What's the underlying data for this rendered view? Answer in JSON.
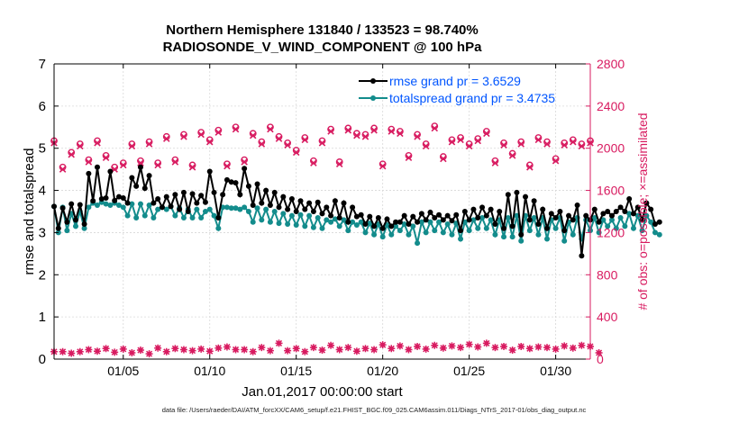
{
  "title": "Northern Hemisphere 131840 / 133523 = 98.740%",
  "subtitle": "RADIOSONDE_V_WIND_COMPONENT @ 100 hPa",
  "footer": "data file: /Users/raeder/DAI/ATM_forcXX/CAM6_setup/f.e21.FHIST_BGC.f09_025.CAM6assim.011/Diags_NTrS_2017-01/obs_diag_output.nc",
  "chart_data": {
    "type": "line",
    "title": "Northern Hemisphere 131840 / 133523 = 98.740%",
    "subtitle": "RADIOSONDE_V_WIND_COMPONENT @ 100 hPa",
    "xlabel": "Jan.01,2017 00:00:00 start",
    "ylabel": "rmse and totalspread",
    "y2label": "# of obs: o=possible; ×=assimilated",
    "xlim": [
      1,
      32
    ],
    "ylim": [
      0,
      7
    ],
    "y2lim": [
      0,
      2800
    ],
    "xticks": [
      5,
      10,
      15,
      20,
      25,
      30
    ],
    "xticklabels": [
      "01/05",
      "01/10",
      "01/15",
      "01/20",
      "01/25",
      "01/30"
    ],
    "yticks": [
      0,
      1,
      2,
      3,
      4,
      5,
      6,
      7
    ],
    "y2ticks": [
      0,
      400,
      800,
      1200,
      1600,
      2000,
      2400,
      2800
    ],
    "grid": true,
    "legend_position": "top-right",
    "colors": {
      "rmse": "#000000",
      "spread": "#138c8c",
      "obs": "#d81b60",
      "axis_right": "#d81b60",
      "legend_text": "#0055ff"
    },
    "series": [
      {
        "name": "rmse grand pr = 3.6529",
        "key": "rmse",
        "x_start": 1.0,
        "x_step": 0.25,
        "values": [
          3.62,
          3.1,
          3.58,
          3.25,
          3.68,
          3.3,
          3.66,
          3.2,
          4.4,
          3.75,
          4.55,
          3.8,
          3.82,
          4.45,
          3.76,
          3.85,
          3.82,
          3.7,
          4.3,
          4.1,
          4.55,
          4.05,
          4.35,
          3.7,
          3.8,
          3.6,
          3.85,
          3.62,
          3.9,
          3.55,
          3.95,
          3.5,
          3.92,
          3.7,
          3.88,
          3.72,
          4.45,
          3.95,
          3.35,
          3.9,
          4.25,
          4.2,
          4.18,
          3.9,
          4.52,
          4.1,
          3.65,
          4.15,
          3.7,
          4.0,
          3.65,
          3.95,
          3.6,
          3.85,
          3.55,
          3.8,
          3.5,
          3.75,
          3.55,
          3.7,
          3.5,
          3.72,
          3.45,
          3.6,
          3.4,
          3.75,
          3.35,
          3.7,
          3.25,
          3.6,
          3.38,
          3.42,
          3.2,
          3.38,
          3.15,
          3.35,
          3.1,
          3.32,
          3.15,
          3.25,
          3.25,
          3.4,
          3.2,
          3.38,
          3.25,
          3.45,
          3.3,
          3.48,
          3.35,
          3.42,
          3.3,
          3.4,
          3.28,
          3.42,
          3.05,
          3.5,
          3.3,
          3.55,
          3.35,
          3.6,
          3.4,
          3.55,
          3.2,
          3.5,
          3.1,
          3.9,
          3.15,
          3.95,
          2.95,
          3.85,
          3.3,
          3.75,
          3.2,
          3.55,
          3.1,
          3.45,
          3.35,
          3.5,
          3.05,
          3.4,
          3.3,
          3.65,
          2.45,
          3.4,
          3.3,
          3.55,
          3.25,
          3.45,
          3.5,
          3.4,
          3.5,
          3.6,
          3.5,
          3.8,
          3.45,
          3.6,
          3.3,
          3.7,
          3.55,
          3.2,
          3.25
        ]
      },
      {
        "name": "totalspread grand pr = 3.4735",
        "key": "spread",
        "x_start": 1.0,
        "x_step": 0.25,
        "values": [
          3.62,
          3.0,
          3.6,
          3.05,
          3.45,
          3.15,
          3.5,
          3.1,
          3.6,
          3.7,
          3.65,
          3.72,
          3.68,
          3.65,
          3.7,
          3.65,
          3.6,
          3.4,
          3.68,
          3.35,
          3.68,
          3.4,
          3.65,
          3.35,
          3.55,
          3.6,
          3.55,
          3.62,
          3.4,
          3.58,
          3.35,
          3.55,
          3.35,
          3.55,
          3.35,
          3.5,
          3.55,
          3.4,
          3.1,
          3.6,
          3.6,
          3.58,
          3.58,
          3.55,
          3.6,
          3.5,
          3.25,
          3.58,
          3.3,
          3.55,
          3.25,
          3.5,
          3.22,
          3.45,
          3.2,
          3.4,
          3.18,
          3.42,
          3.15,
          3.4,
          3.12,
          3.35,
          3.1,
          3.3,
          3.25,
          3.32,
          3.15,
          3.3,
          3.05,
          3.25,
          3.18,
          3.25,
          3.0,
          3.22,
          2.95,
          3.2,
          2.9,
          3.18,
          2.95,
          3.15,
          3.05,
          3.2,
          2.95,
          3.15,
          2.75,
          3.25,
          3.0,
          3.25,
          3.05,
          3.25,
          3.0,
          3.2,
          2.95,
          3.22,
          2.85,
          3.25,
          3.05,
          3.3,
          3.1,
          3.35,
          3.1,
          3.3,
          2.95,
          3.3,
          2.9,
          3.35,
          2.9,
          3.4,
          2.8,
          3.4,
          3.05,
          3.35,
          2.95,
          3.35,
          2.85,
          3.3,
          3.1,
          3.35,
          2.8,
          3.25,
          2.95,
          3.35,
          2.85,
          3.3,
          3.05,
          3.35,
          3.0,
          3.3,
          3.15,
          3.3,
          3.1,
          3.35,
          3.15,
          3.45,
          3.1,
          3.4,
          3.05,
          3.4,
          3.25,
          3.0,
          2.95
        ]
      },
      {
        "name": "obs possible",
        "key": "obs_possible",
        "marker": "o",
        "x_start": 1.0,
        "x_step": 0.5,
        "values": [
          2070,
          1820,
          1960,
          2040,
          1890,
          2070,
          1930,
          1820,
          1860,
          2040,
          1880,
          2060,
          1860,
          2110,
          1890,
          2130,
          1840,
          2150,
          2080,
          2170,
          1850,
          2200,
          1890,
          2140,
          2060,
          2200,
          2110,
          2050,
          1980,
          2100,
          1880,
          2070,
          2180,
          1870,
          2190,
          2140,
          2130,
          2190,
          1850,
          2180,
          2160,
          1930,
          2130,
          2040,
          2210,
          1920,
          2080,
          2100,
          2040,
          2090,
          2160,
          1880,
          2050,
          1950,
          2060,
          1840,
          2100,
          2060,
          1900,
          2050,
          2080,
          2040,
          2070
        ]
      },
      {
        "name": "obs assimilated",
        "key": "obs_assimilated",
        "marker": "x",
        "x_start": 1.0,
        "x_step": 0.5,
        "values": [
          2050,
          1800,
          1940,
          2020,
          1870,
          2050,
          1910,
          1800,
          1840,
          2020,
          1860,
          2040,
          1840,
          2090,
          1870,
          2110,
          1820,
          2130,
          2060,
          2150,
          1830,
          2180,
          1870,
          2120,
          2040,
          2180,
          2090,
          2030,
          1960,
          2080,
          1860,
          2050,
          2160,
          1850,
          2170,
          2120,
          2110,
          2170,
          1830,
          2160,
          2140,
          1910,
          2110,
          2020,
          2190,
          1900,
          2060,
          2080,
          2020,
          2070,
          2140,
          1860,
          2030,
          1930,
          2040,
          1820,
          2080,
          2040,
          1880,
          2030,
          2060,
          2020,
          2050
        ]
      },
      {
        "name": "obs low-level possible",
        "key": "obs_low",
        "marker": "o+x",
        "x_start": 1.0,
        "x_step": 0.5,
        "values": [
          70,
          70,
          55,
          70,
          90,
          75,
          100,
          65,
          95,
          60,
          85,
          50,
          105,
          70,
          100,
          90,
          80,
          95,
          75,
          105,
          115,
          90,
          90,
          70,
          110,
          80,
          150,
          80,
          100,
          70,
          110,
          85,
          130,
          90,
          110,
          75,
          100,
          90,
          135,
          100,
          125,
          90,
          120,
          95,
          130,
          105,
          125,
          110,
          140,
          115,
          150,
          110,
          120,
          85,
          120,
          100,
          115,
          110,
          95,
          125,
          105,
          130,
          120,
          60
        ]
      }
    ]
  }
}
